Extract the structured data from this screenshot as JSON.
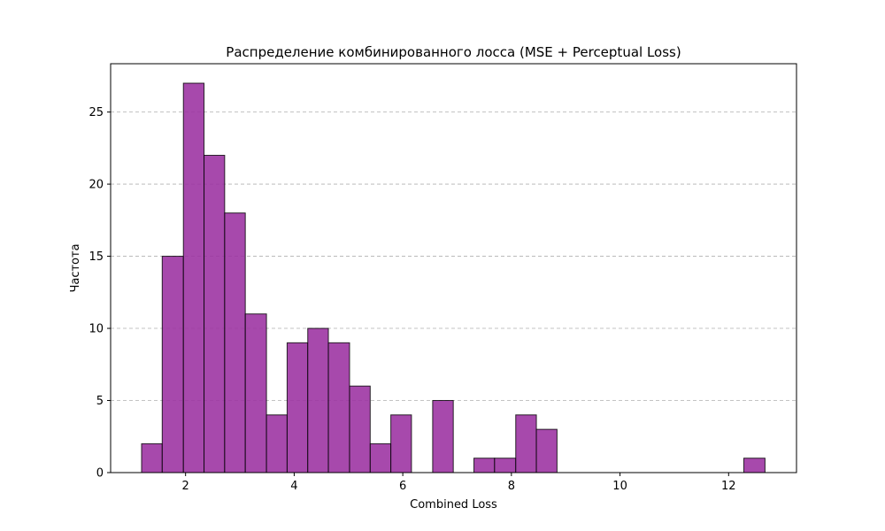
{
  "chart_data": {
    "type": "bar",
    "title": "Распределение комбинированного лосса (MSE + Perceptual Loss)",
    "xlabel": "Combined Loss",
    "ylabel": "Частота",
    "xlim": [
      0.62,
      13.25
    ],
    "ylim": [
      0,
      28.35
    ],
    "x_ticks": [
      2,
      4,
      6,
      8,
      10,
      12
    ],
    "y_ticks": [
      0,
      5,
      10,
      15,
      20,
      25
    ],
    "grid": "y-dashed",
    "bar_color": "#9b30a0",
    "bins": [
      {
        "left": 1.19,
        "right": 1.57,
        "count": 2
      },
      {
        "left": 1.57,
        "right": 1.96,
        "count": 15
      },
      {
        "left": 1.96,
        "right": 2.34,
        "count": 27
      },
      {
        "left": 2.34,
        "right": 2.72,
        "count": 22
      },
      {
        "left": 2.72,
        "right": 3.1,
        "count": 18
      },
      {
        "left": 3.1,
        "right": 3.49,
        "count": 11
      },
      {
        "left": 3.49,
        "right": 3.87,
        "count": 4
      },
      {
        "left": 3.87,
        "right": 4.25,
        "count": 9
      },
      {
        "left": 4.25,
        "right": 4.63,
        "count": 10
      },
      {
        "left": 4.63,
        "right": 5.02,
        "count": 9
      },
      {
        "left": 5.02,
        "right": 5.4,
        "count": 6
      },
      {
        "left": 5.4,
        "right": 5.78,
        "count": 2
      },
      {
        "left": 5.78,
        "right": 6.16,
        "count": 4
      },
      {
        "left": 6.16,
        "right": 6.55,
        "count": 0
      },
      {
        "left": 6.55,
        "right": 6.93,
        "count": 5
      },
      {
        "left": 6.93,
        "right": 7.31,
        "count": 0
      },
      {
        "left": 7.31,
        "right": 7.69,
        "count": 1
      },
      {
        "left": 7.69,
        "right": 8.08,
        "count": 1
      },
      {
        "left": 8.08,
        "right": 8.46,
        "count": 4
      },
      {
        "left": 8.46,
        "right": 8.84,
        "count": 3
      },
      {
        "left": 8.84,
        "right": 9.22,
        "count": 0
      },
      {
        "left": 9.22,
        "right": 9.61,
        "count": 0
      },
      {
        "left": 9.61,
        "right": 9.99,
        "count": 0
      },
      {
        "left": 9.99,
        "right": 10.37,
        "count": 0
      },
      {
        "left": 10.37,
        "right": 10.75,
        "count": 0
      },
      {
        "left": 10.75,
        "right": 11.14,
        "count": 0
      },
      {
        "left": 11.14,
        "right": 11.52,
        "count": 0
      },
      {
        "left": 11.52,
        "right": 11.9,
        "count": 0
      },
      {
        "left": 11.9,
        "right": 12.28,
        "count": 0
      },
      {
        "left": 12.28,
        "right": 12.67,
        "count": 1
      }
    ]
  }
}
